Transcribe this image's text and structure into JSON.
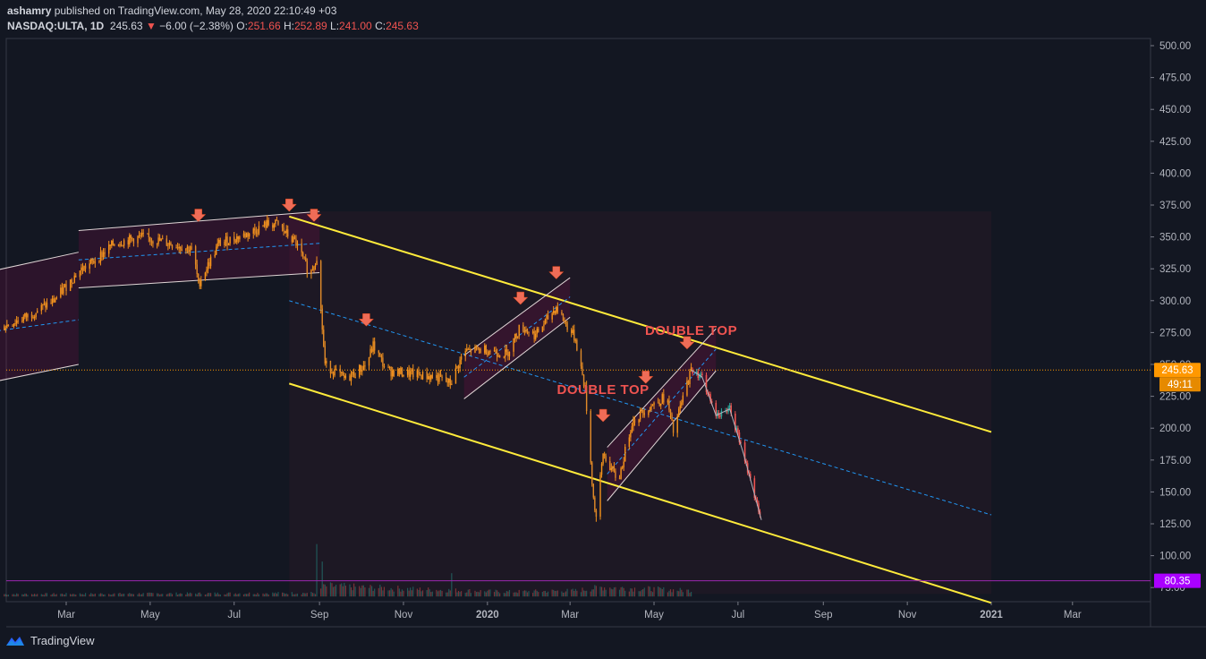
{
  "header": {
    "author": "ashamry",
    "published": " published on TradingView.com, May 28, 2020 22:10:49 +03",
    "symbol": "NASDAQ:ULTA, 1D",
    "last": "245.63",
    "change": "−6.00 (−2.38%)",
    "o_label": "O:",
    "o": "251.66",
    "h_label": "H:",
    "h": "252.89",
    "l_label": "L:",
    "l": "241.00",
    "c_label": "C:",
    "c": "245.63"
  },
  "footer": {
    "brand": "TradingView"
  },
  "colors": {
    "background": "#131722",
    "up": "#f7931a",
    "down": "#ef5350",
    "channel": "#ffeb3b",
    "midline": "#2196f3",
    "price_tag": "#ff9800",
    "level_line": "#9c27b0"
  },
  "chart_data": {
    "type": "candlestick",
    "symbol": "NASDAQ:ULTA",
    "interval": "1D",
    "ylim": [
      70,
      510
    ],
    "y_ticks": [
      "500.00",
      "475.00",
      "450.00",
      "425.00",
      "400.00",
      "375.00",
      "350.00",
      "325.00",
      "300.00",
      "275.00",
      "250.00",
      "225.00",
      "200.00",
      "175.00",
      "150.00",
      "125.00",
      "100.00",
      "75.00"
    ],
    "x_ticks": [
      "Mar",
      "May",
      "Jul",
      "Sep",
      "Nov",
      "2020",
      "Mar",
      "May",
      "Jul",
      "Sep",
      "Nov",
      "2021",
      "Mar"
    ],
    "price_path": [
      [
        "2019-01-15",
        280
      ],
      [
        "2019-02-01",
        288
      ],
      [
        "2019-02-20",
        300
      ],
      [
        "2019-03-10",
        323
      ],
      [
        "2019-03-20",
        330
      ],
      [
        "2019-04-05",
        345
      ],
      [
        "2019-04-25",
        350
      ],
      [
        "2019-05-15",
        345
      ],
      [
        "2019-06-01",
        340
      ],
      [
        "2019-06-05",
        313
      ],
      [
        "2019-06-20",
        345
      ],
      [
        "2019-07-10",
        352
      ],
      [
        "2019-07-25",
        360
      ],
      [
        "2019-08-01",
        360
      ],
      [
        "2019-08-15",
        345
      ],
      [
        "2019-08-25",
        320
      ],
      [
        "2019-08-30",
        335
      ],
      [
        "2019-09-05",
        250
      ],
      [
        "2019-09-20",
        238
      ],
      [
        "2019-10-05",
        250
      ],
      [
        "2019-10-10",
        265
      ],
      [
        "2019-10-20",
        245
      ],
      [
        "2019-11-10",
        242
      ],
      [
        "2019-11-25",
        240
      ],
      [
        "2019-12-05",
        235
      ],
      [
        "2019-12-15",
        260
      ],
      [
        "2019-12-30",
        262
      ],
      [
        "2020-01-15",
        258
      ],
      [
        "2020-01-25",
        280
      ],
      [
        "2020-02-05",
        273
      ],
      [
        "2020-02-20",
        295
      ],
      [
        "2020-02-28",
        280
      ],
      [
        "2020-03-05",
        270
      ],
      [
        "2020-03-12",
        230
      ],
      [
        "2020-03-18",
        145
      ],
      [
        "2020-03-20",
        130
      ],
      [
        "2020-03-25",
        180
      ],
      [
        "2020-04-05",
        158
      ],
      [
        "2020-04-15",
        205
      ],
      [
        "2020-04-25",
        215
      ],
      [
        "2020-05-10",
        225
      ],
      [
        "2020-05-15",
        197
      ],
      [
        "2020-05-25",
        235
      ],
      [
        "2020-05-28",
        245.63
      ]
    ],
    "projection": [
      [
        "2020-05-28",
        245.63
      ],
      [
        "2020-06-05",
        240
      ],
      [
        "2020-06-15",
        210
      ],
      [
        "2020-06-25",
        215
      ],
      [
        "2020-07-05",
        180
      ],
      [
        "2020-07-18",
        128
      ]
    ],
    "volume_path": [
      [
        "2019-01-15",
        2
      ],
      [
        "2019-08-30",
        3
      ],
      [
        "2019-09-05",
        9
      ],
      [
        "2019-11-15",
        6
      ],
      [
        "2020-01-15",
        4
      ],
      [
        "2020-03-05",
        5
      ],
      [
        "2020-03-25",
        8
      ],
      [
        "2020-05-28",
        5
      ]
    ],
    "annotations": [
      {
        "text": "DOUBLE TOP",
        "x": "2020-03-25",
        "y": 227
      },
      {
        "text": "DOUBLE TOP",
        "x": "2020-05-28",
        "y": 273
      }
    ],
    "arrows": [
      [
        "2019-06-05",
        362
      ],
      [
        "2019-08-10",
        370
      ],
      [
        "2019-08-28",
        362
      ],
      [
        "2019-10-05",
        280
      ],
      [
        "2020-01-25",
        297
      ],
      [
        "2020-02-20",
        317
      ],
      [
        "2020-03-25",
        205
      ],
      [
        "2020-04-25",
        235
      ],
      [
        "2020-05-25",
        262
      ]
    ],
    "channels": [
      {
        "upper": [
          [
            "2019-08-10",
            366
          ],
          [
            "2021-01-01",
            197
          ]
        ],
        "lower": [
          [
            "2019-08-10",
            235
          ],
          [
            "2021-01-01",
            63
          ]
        ],
        "mid": [
          [
            "2019-08-10",
            300
          ],
          [
            "2021-01-01",
            132
          ]
        ],
        "color": "yellow"
      },
      {
        "upper": [
          [
            "2019-01-01",
            322
          ],
          [
            "2019-03-10",
            338
          ]
        ],
        "lower": [
          [
            "2019-01-01",
            235
          ],
          [
            "2019-03-10",
            250
          ]
        ],
        "mid": [
          [
            "2019-01-01",
            275
          ],
          [
            "2019-03-10",
            285
          ]
        ],
        "color": "white"
      },
      {
        "upper": [
          [
            "2019-03-10",
            355
          ],
          [
            "2019-09-01",
            370
          ]
        ],
        "lower": [
          [
            "2019-03-10",
            310
          ],
          [
            "2019-09-01",
            322
          ]
        ],
        "mid": [
          [
            "2019-03-10",
            332
          ],
          [
            "2019-09-01",
            345
          ]
        ],
        "color": "white"
      },
      {
        "upper": [
          [
            "2019-12-15",
            257
          ],
          [
            "2020-03-01",
            318
          ]
        ],
        "lower": [
          [
            "2019-12-15",
            223
          ],
          [
            "2020-03-01",
            287
          ]
        ],
        "mid": [
          [
            "2019-12-15",
            240
          ],
          [
            "2020-03-01",
            303
          ]
        ],
        "color": "white"
      },
      {
        "upper": [
          [
            "2020-03-28",
            185
          ],
          [
            "2020-06-15",
            278
          ]
        ],
        "lower": [
          [
            "2020-03-28",
            143
          ],
          [
            "2020-06-15",
            245
          ]
        ],
        "mid": [
          [
            "2020-03-28",
            164
          ],
          [
            "2020-06-15",
            262
          ]
        ],
        "color": "white"
      }
    ],
    "last_price": "245.63",
    "countdown": "49:11",
    "level": "80.35"
  }
}
